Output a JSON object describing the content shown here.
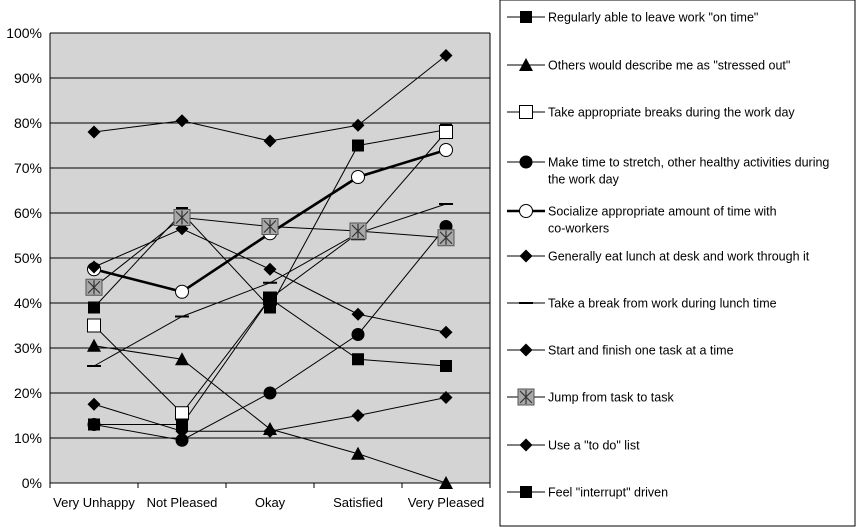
{
  "chart_data": {
    "type": "line",
    "categories": [
      "Very Unhappy",
      "Not Pleased",
      "Okay",
      "Satisfied",
      "Very Pleased"
    ],
    "ylim": [
      0,
      100
    ],
    "yticks": [
      "0%",
      "10%",
      "20%",
      "30%",
      "40%",
      "50%",
      "60%",
      "70%",
      "80%",
      "90%",
      "100%"
    ],
    "grid": true,
    "legend_position": "right",
    "series": [
      {
        "name": "Regularly able to leave work \"on time\"",
        "marker": "square-filled",
        "values": [
          39,
          60,
          39,
          75,
          78.5
        ]
      },
      {
        "name": "Others would describe me as \"stressed out\"",
        "marker": "triangle-filled",
        "values": [
          30.5,
          27.5,
          12,
          6.5,
          0
        ]
      },
      {
        "name": "Take appropriate breaks during the work day",
        "marker": "square-open",
        "values": [
          35,
          15.5,
          41,
          55.5,
          78
        ]
      },
      {
        "name": "Make time to stretch, other healthy activities during the work day",
        "marker": "circle-filled",
        "values": [
          13,
          9.5,
          20,
          33,
          57
        ]
      },
      {
        "name": "Socialize appropriate amount of time with co-workers",
        "marker": "circle-open",
        "values": [
          47.5,
          42.5,
          55.5,
          68,
          74
        ],
        "bold": true
      },
      {
        "name": "Generally eat lunch at desk and work through it",
        "marker": "diamond-filled",
        "values": [
          78,
          80.5,
          76,
          79.5,
          95
        ]
      },
      {
        "name": "Take a break from work during lunch time",
        "marker": "dash",
        "values": [
          26,
          37,
          44.5,
          55.5,
          62
        ]
      },
      {
        "name": "Start and finish one task at a time",
        "marker": "diamond-filled",
        "values": [
          48,
          56.5,
          47.5,
          37.5,
          33.5
        ]
      },
      {
        "name": "Jump from task to task",
        "marker": "square-cross",
        "values": [
          43.5,
          59,
          57,
          56,
          54.5
        ]
      },
      {
        "name": "Use a \"to do\" list",
        "marker": "diamond-filled",
        "values": [
          17.5,
          11.5,
          11.5,
          15,
          19
        ]
      },
      {
        "name": "Feel \"interrupt\" driven",
        "marker": "square-filled",
        "values": [
          13,
          13,
          41,
          27.5,
          26
        ]
      }
    ]
  }
}
